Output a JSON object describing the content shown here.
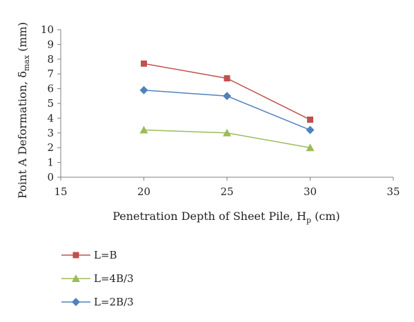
{
  "chart_data": {
    "type": "line",
    "title": "",
    "xlabel": {
      "main": "Penetration Depth of Sheet Pile, H",
      "sub": "p",
      "unit": " (cm)"
    },
    "ylabel": {
      "main": "Point A Deformation, δ",
      "sub": "max",
      "unit": " (mm)"
    },
    "xlim": [
      15,
      35
    ],
    "ylim": [
      0,
      10
    ],
    "xticks": [
      "15",
      "20",
      "25",
      "30",
      "35"
    ],
    "yticks": [
      "0",
      "1",
      "2",
      "3",
      "4",
      "5",
      "6",
      "7",
      "8",
      "9",
      "10"
    ],
    "grid": false,
    "legend_position": "bottom-left",
    "series": [
      {
        "name": "L=B",
        "marker": "square",
        "color": "#c0504d",
        "x": [
          20,
          25,
          30
        ],
        "y": [
          7.7,
          6.7,
          3.9
        ]
      },
      {
        "name": "L=4B/3",
        "marker": "triangle",
        "color": "#9bbb59",
        "x": [
          20,
          25,
          30
        ],
        "y": [
          3.2,
          3.0,
          2.0
        ]
      },
      {
        "name": "L=2B/3",
        "marker": "diamond",
        "color": "#4f81bd",
        "x": [
          20,
          25,
          30
        ],
        "y": [
          5.9,
          5.5,
          3.2
        ]
      }
    ]
  }
}
